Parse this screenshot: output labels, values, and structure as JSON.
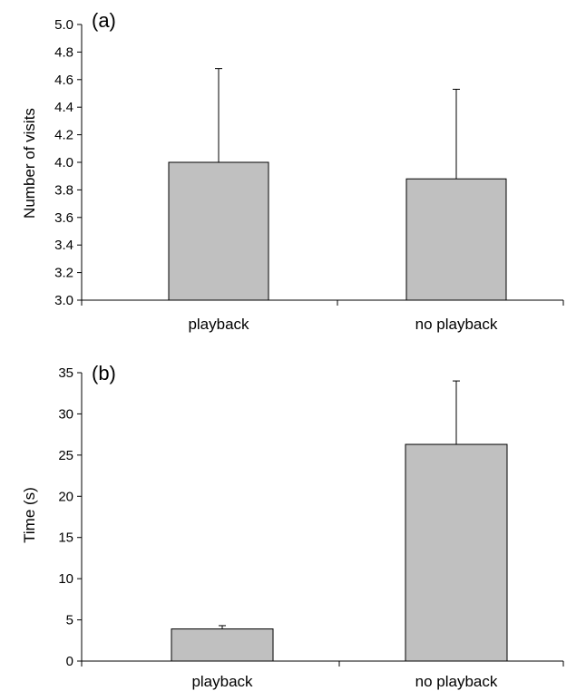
{
  "chart_data": [
    {
      "type": "bar",
      "panel_label": "(a)",
      "ylabel": "Number of visits",
      "xlabel": "",
      "categories": [
        "playback",
        "no playback"
      ],
      "values": [
        4.0,
        3.88
      ],
      "error_upper": [
        4.68,
        4.53
      ],
      "ylim": [
        3.0,
        5.0
      ],
      "yticks": [
        "3.0",
        "3.2",
        "3.4",
        "3.6",
        "3.8",
        "4.0",
        "4.2",
        "4.4",
        "4.6",
        "4.8",
        "5.0"
      ],
      "bar_color": "#c0c0c0",
      "grid": false
    },
    {
      "type": "bar",
      "panel_label": "(b)",
      "ylabel": "Time (s)",
      "xlabel": "",
      "categories": [
        "playback",
        "no playback"
      ],
      "values": [
        3.9,
        26.3
      ],
      "error_upper": [
        4.3,
        34.0
      ],
      "ylim": [
        0,
        35
      ],
      "yticks": [
        "0",
        "5",
        "10",
        "15",
        "20",
        "25",
        "30",
        "35"
      ],
      "bar_color": "#c0c0c0",
      "grid": false
    }
  ]
}
